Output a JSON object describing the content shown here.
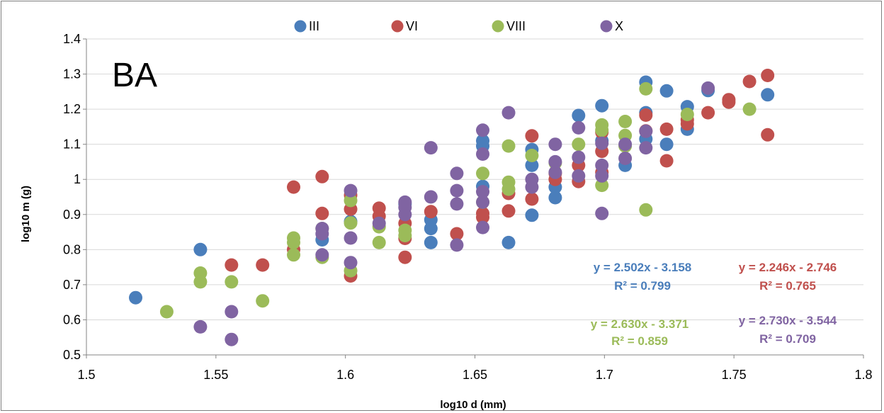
{
  "chart_data": {
    "type": "scatter",
    "panel_label": "BA",
    "xlabel": "log10 d (mm)",
    "ylabel": "log10 m (g)",
    "xlim": [
      1.5,
      1.8
    ],
    "ylim": [
      0.5,
      1.4
    ],
    "x_ticks": [
      "1.5",
      "1.55",
      "1.6",
      "1.65",
      "1.7",
      "1.75",
      "1.8"
    ],
    "y_ticks": [
      "0.5",
      "0.6",
      "0.7",
      "0.8",
      "0.9",
      "1",
      "1.1",
      "1.2",
      "1.3",
      "1.4"
    ],
    "grid": "horizontal",
    "legend": "top",
    "series": [
      {
        "name": "III",
        "color": "#4a7ebb",
        "equation": "y = 2.502x - 3.158",
        "r2": "R² = 0.799",
        "points": [
          [
            1.519,
            0.663
          ],
          [
            1.544,
            0.8
          ],
          [
            1.591,
            0.828
          ],
          [
            1.602,
            0.88
          ],
          [
            1.623,
            0.93
          ],
          [
            1.633,
            0.82
          ],
          [
            1.633,
            0.86
          ],
          [
            1.633,
            0.885
          ],
          [
            1.653,
            1.11
          ],
          [
            1.653,
            1.095
          ],
          [
            1.653,
            0.98
          ],
          [
            1.663,
            0.82
          ],
          [
            1.672,
            0.898
          ],
          [
            1.672,
            1.085
          ],
          [
            1.672,
            1.04
          ],
          [
            1.681,
            0.948
          ],
          [
            1.681,
            0.978
          ],
          [
            1.69,
            1.182
          ],
          [
            1.699,
            1.21
          ],
          [
            1.699,
            1.11
          ],
          [
            1.708,
            1.04
          ],
          [
            1.716,
            1.277
          ],
          [
            1.716,
            1.19
          ],
          [
            1.716,
            1.115
          ],
          [
            1.724,
            1.252
          ],
          [
            1.724,
            1.1
          ],
          [
            1.732,
            1.207
          ],
          [
            1.732,
            1.143
          ],
          [
            1.74,
            1.253
          ],
          [
            1.763,
            1.241
          ]
        ]
      },
      {
        "name": "VI",
        "color": "#c0504d",
        "equation": "y = 2.246x - 2.746",
        "r2": "R² = 0.765",
        "points": [
          [
            1.556,
            0.756
          ],
          [
            1.568,
            0.756
          ],
          [
            1.58,
            0.978
          ],
          [
            1.58,
            0.8
          ],
          [
            1.591,
            1.008
          ],
          [
            1.591,
            0.903
          ],
          [
            1.602,
            0.725
          ],
          [
            1.602,
            0.915
          ],
          [
            1.602,
            0.955
          ],
          [
            1.613,
            0.918
          ],
          [
            1.613,
            0.895
          ],
          [
            1.623,
            0.778
          ],
          [
            1.623,
            0.832
          ],
          [
            1.623,
            0.875
          ],
          [
            1.633,
            0.908
          ],
          [
            1.643,
            0.845
          ],
          [
            1.653,
            0.903
          ],
          [
            1.653,
            0.892
          ],
          [
            1.663,
            0.91
          ],
          [
            1.663,
            0.96
          ],
          [
            1.672,
            1.124
          ],
          [
            1.672,
            0.944
          ],
          [
            1.681,
            1.0
          ],
          [
            1.681,
            1.017
          ],
          [
            1.69,
            0.994
          ],
          [
            1.69,
            1.04
          ],
          [
            1.699,
            1.08
          ],
          [
            1.699,
            1.134
          ],
          [
            1.699,
            1.02
          ],
          [
            1.716,
            1.183
          ],
          [
            1.716,
            1.138
          ],
          [
            1.724,
            1.053
          ],
          [
            1.724,
            1.143
          ],
          [
            1.732,
            1.158
          ],
          [
            1.732,
            1.17
          ],
          [
            1.74,
            1.19
          ],
          [
            1.748,
            1.227
          ],
          [
            1.748,
            1.22
          ],
          [
            1.756,
            1.279
          ],
          [
            1.763,
            1.296
          ],
          [
            1.763,
            1.127
          ]
        ]
      },
      {
        "name": "VIII",
        "color": "#9bbb59",
        "equation": "y = 2.630x - 3.371",
        "r2": "R² = 0.859",
        "points": [
          [
            1.531,
            0.623
          ],
          [
            1.544,
            0.733
          ],
          [
            1.544,
            0.708
          ],
          [
            1.556,
            0.708
          ],
          [
            1.568,
            0.654
          ],
          [
            1.58,
            0.833
          ],
          [
            1.58,
            0.785
          ],
          [
            1.58,
            0.82
          ],
          [
            1.591,
            0.778
          ],
          [
            1.591,
            0.86
          ],
          [
            1.602,
            0.74
          ],
          [
            1.602,
            0.876
          ],
          [
            1.602,
            0.94
          ],
          [
            1.613,
            0.82
          ],
          [
            1.613,
            0.865
          ],
          [
            1.623,
            0.855
          ],
          [
            1.623,
            0.84
          ],
          [
            1.653,
            1.017
          ],
          [
            1.653,
            0.935
          ],
          [
            1.663,
            1.095
          ],
          [
            1.663,
            0.992
          ],
          [
            1.663,
            0.972
          ],
          [
            1.672,
            1.068
          ],
          [
            1.681,
            1.047
          ],
          [
            1.69,
            1.1
          ],
          [
            1.699,
            1.155
          ],
          [
            1.699,
            1.14
          ],
          [
            1.699,
            0.983
          ],
          [
            1.708,
            1.165
          ],
          [
            1.708,
            1.125
          ],
          [
            1.708,
            1.095
          ],
          [
            1.716,
            1.258
          ],
          [
            1.716,
            0.913
          ],
          [
            1.732,
            1.185
          ],
          [
            1.756,
            1.2
          ]
        ]
      },
      {
        "name": "X",
        "color": "#8064a2",
        "equation": "y = 2.730x - 3.544",
        "r2": "R² = 0.709",
        "points": [
          [
            1.544,
            0.58
          ],
          [
            1.556,
            0.544
          ],
          [
            1.556,
            0.623
          ],
          [
            1.591,
            0.785
          ],
          [
            1.591,
            0.845
          ],
          [
            1.591,
            0.86
          ],
          [
            1.602,
            0.968
          ],
          [
            1.602,
            0.833
          ],
          [
            1.602,
            0.763
          ],
          [
            1.613,
            0.875
          ],
          [
            1.623,
            0.935
          ],
          [
            1.623,
            0.92
          ],
          [
            1.623,
            0.9
          ],
          [
            1.633,
            1.09
          ],
          [
            1.633,
            0.95
          ],
          [
            1.643,
            1.017
          ],
          [
            1.643,
            0.968
          ],
          [
            1.643,
            0.93
          ],
          [
            1.643,
            0.813
          ],
          [
            1.653,
            1.14
          ],
          [
            1.653,
            1.072
          ],
          [
            1.653,
            0.965
          ],
          [
            1.653,
            0.935
          ],
          [
            1.653,
            0.863
          ],
          [
            1.663,
            1.19
          ],
          [
            1.672,
            1.0
          ],
          [
            1.672,
            0.978
          ],
          [
            1.681,
            1.1
          ],
          [
            1.681,
            1.05
          ],
          [
            1.681,
            1.02
          ],
          [
            1.69,
            1.147
          ],
          [
            1.69,
            1.063
          ],
          [
            1.69,
            1.01
          ],
          [
            1.699,
            1.103
          ],
          [
            1.699,
            1.04
          ],
          [
            1.699,
            1.01
          ],
          [
            1.699,
            0.903
          ],
          [
            1.708,
            1.1
          ],
          [
            1.708,
            1.06
          ],
          [
            1.716,
            1.137
          ],
          [
            1.716,
            1.09
          ],
          [
            1.74,
            1.26
          ]
        ]
      }
    ]
  }
}
